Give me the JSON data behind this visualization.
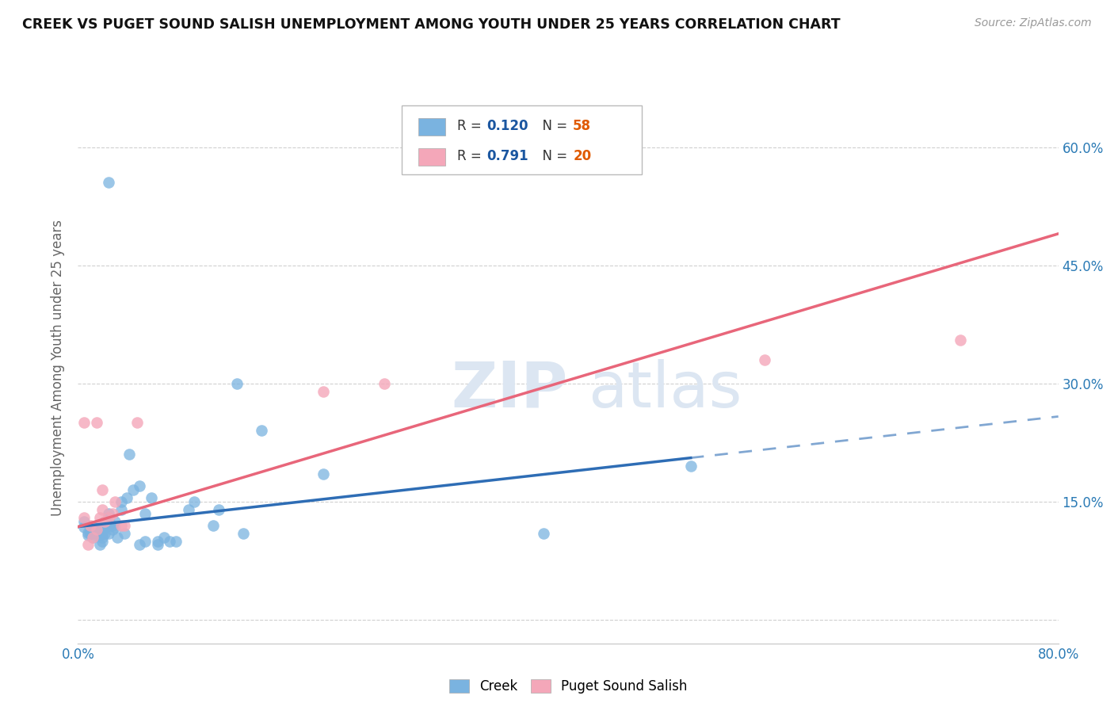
{
  "title": "CREEK VS PUGET SOUND SALISH UNEMPLOYMENT AMONG YOUTH UNDER 25 YEARS CORRELATION CHART",
  "source": "Source: ZipAtlas.com",
  "ylabel": "Unemployment Among Youth under 25 years",
  "xlim": [
    0.0,
    0.8
  ],
  "ylim": [
    -0.03,
    0.67
  ],
  "creek_color": "#7ab3e0",
  "pss_color": "#f4a7b9",
  "creek_line_color": "#2e6db5",
  "pss_line_color": "#e8667a",
  "legend_R_color": "#1a56a0",
  "legend_N_color": "#e05a00",
  "creek_R": 0.12,
  "creek_N": 58,
  "pss_R": 0.791,
  "pss_N": 20,
  "creek_x": [
    0.005,
    0.005,
    0.008,
    0.008,
    0.01,
    0.01,
    0.01,
    0.012,
    0.012,
    0.012,
    0.015,
    0.015,
    0.015,
    0.015,
    0.018,
    0.018,
    0.02,
    0.02,
    0.02,
    0.02,
    0.022,
    0.022,
    0.022,
    0.025,
    0.025,
    0.025,
    0.025,
    0.028,
    0.028,
    0.03,
    0.03,
    0.032,
    0.035,
    0.035,
    0.038,
    0.04,
    0.042,
    0.045,
    0.05,
    0.05,
    0.055,
    0.055,
    0.06,
    0.065,
    0.065,
    0.07,
    0.075,
    0.08,
    0.09,
    0.095,
    0.11,
    0.115,
    0.13,
    0.135,
    0.15,
    0.2,
    0.38,
    0.5
  ],
  "creek_y": [
    0.125,
    0.118,
    0.108,
    0.111,
    0.11,
    0.112,
    0.118,
    0.105,
    0.11,
    0.114,
    0.108,
    0.112,
    0.116,
    0.12,
    0.095,
    0.108,
    0.1,
    0.105,
    0.11,
    0.115,
    0.11,
    0.118,
    0.125,
    0.11,
    0.12,
    0.13,
    0.135,
    0.115,
    0.12,
    0.118,
    0.125,
    0.105,
    0.14,
    0.15,
    0.11,
    0.155,
    0.21,
    0.165,
    0.095,
    0.17,
    0.1,
    0.135,
    0.155,
    0.095,
    0.1,
    0.105,
    0.1,
    0.1,
    0.14,
    0.15,
    0.12,
    0.14,
    0.3,
    0.11,
    0.24,
    0.185,
    0.11,
    0.195
  ],
  "creek_outlier_x": [
    0.025
  ],
  "creek_outlier_y": [
    0.555
  ],
  "pss_x": [
    0.005,
    0.008,
    0.01,
    0.012,
    0.015,
    0.015,
    0.018,
    0.02,
    0.02,
    0.022,
    0.025,
    0.028,
    0.03,
    0.035,
    0.038,
    0.048,
    0.2,
    0.25,
    0.56,
    0.72
  ],
  "pss_y": [
    0.13,
    0.095,
    0.12,
    0.105,
    0.115,
    0.25,
    0.13,
    0.14,
    0.165,
    0.125,
    0.13,
    0.135,
    0.15,
    0.12,
    0.12,
    0.25,
    0.29,
    0.3,
    0.33,
    0.355
  ],
  "pss_outlier_x": [
    0.005
  ],
  "pss_outlier_y": [
    0.25
  ],
  "background_color": "#ffffff",
  "grid_color": "#d0d0d0",
  "creek_line_x_solid_end": 0.5,
  "creek_line_intercept": 0.118,
  "creek_line_slope": 0.175,
  "pss_line_intercept": 0.118,
  "pss_line_slope": 0.465
}
